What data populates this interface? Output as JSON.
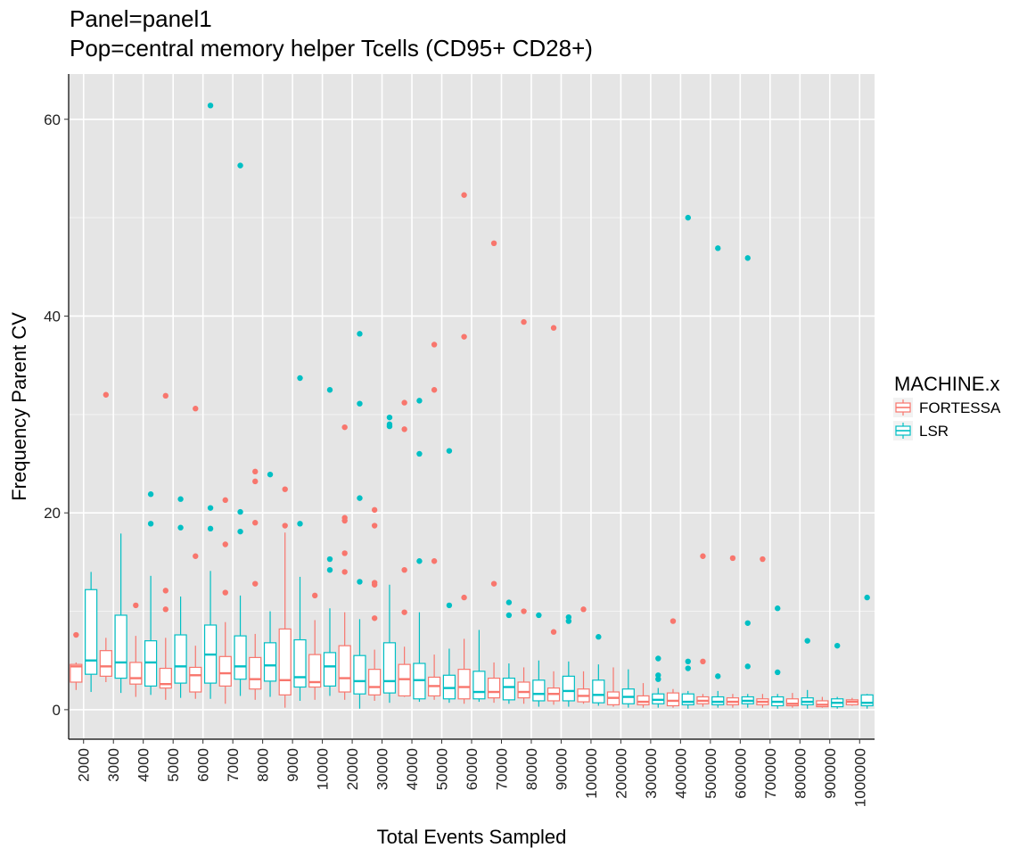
{
  "chart_data": {
    "type": "boxplot",
    "title": "Panel=panel1",
    "subtitle": "Pop=central memory helper Tcells (CD95+ CD28+)",
    "xlabel": "Total Events Sampled",
    "ylabel": "Frequency Parent CV",
    "ylim": [
      -3,
      64.6
    ],
    "yticks": [
      0,
      20,
      40,
      60
    ],
    "grid": true,
    "legend": {
      "title": "MACHINE.x",
      "position": "right"
    },
    "categories": [
      "2000",
      "3000",
      "4000",
      "5000",
      "6000",
      "7000",
      "8000",
      "9000",
      "10000",
      "20000",
      "30000",
      "40000",
      "50000",
      "60000",
      "70000",
      "80000",
      "90000",
      "100000",
      "200000",
      "300000",
      "400000",
      "500000",
      "600000",
      "700000",
      "800000",
      "900000",
      "1000000"
    ],
    "series": [
      {
        "name": "FORTESSA",
        "color": "#F8766D",
        "boxes": [
          {
            "min": 2.0,
            "q1": 2.8,
            "median": 4.4,
            "q3": 4.6,
            "max": 4.8,
            "outliers": [
              7.6
            ]
          },
          {
            "min": 2.8,
            "q1": 3.4,
            "median": 4.4,
            "q3": 6.0,
            "max": 7.3,
            "outliers": [
              32.0
            ]
          },
          {
            "min": 1.3,
            "q1": 2.6,
            "median": 3.2,
            "q3": 4.8,
            "max": 7.5,
            "outliers": [
              10.6
            ]
          },
          {
            "min": 1.0,
            "q1": 2.2,
            "median": 2.6,
            "q3": 4.2,
            "max": 7.3,
            "outliers": [
              10.2,
              12.1,
              31.9
            ]
          },
          {
            "min": 1.1,
            "q1": 1.8,
            "median": 3.5,
            "q3": 4.3,
            "max": 6.5,
            "outliers": [
              15.6,
              30.6
            ]
          },
          {
            "min": 0.6,
            "q1": 2.4,
            "median": 3.7,
            "q3": 5.4,
            "max": 8.9,
            "outliers": [
              11.9,
              16.8,
              21.3
            ]
          },
          {
            "min": 1.0,
            "q1": 2.1,
            "median": 3.1,
            "q3": 5.3,
            "max": 7.7,
            "outliers": [
              12.8,
              19.0,
              23.2,
              24.2
            ]
          },
          {
            "min": 0.2,
            "q1": 1.5,
            "median": 3.0,
            "q3": 8.2,
            "max": 18.0,
            "outliers": [
              18.7,
              22.4
            ]
          },
          {
            "min": 1.0,
            "q1": 2.3,
            "median": 2.8,
            "q3": 5.6,
            "max": 9.1,
            "outliers": [
              11.6
            ]
          },
          {
            "min": 1.0,
            "q1": 1.8,
            "median": 3.2,
            "q3": 6.5,
            "max": 9.9,
            "outliers": [
              14.0,
              15.9,
              19.2,
              19.5,
              28.7
            ]
          },
          {
            "min": 0.9,
            "q1": 1.5,
            "median": 2.3,
            "q3": 4.1,
            "max": 6.1,
            "outliers": [
              9.3,
              12.7,
              12.9,
              18.7,
              20.3
            ]
          },
          {
            "min": 1.3,
            "q1": 1.4,
            "median": 3.1,
            "q3": 4.6,
            "max": 6.4,
            "outliers": [
              9.9,
              14.2,
              28.5,
              31.2
            ]
          },
          {
            "min": 1.0,
            "q1": 1.4,
            "median": 2.4,
            "q3": 3.3,
            "max": 5.6,
            "outliers": [
              15.1,
              32.5,
              37.1
            ]
          },
          {
            "min": 0.6,
            "q1": 1.1,
            "median": 2.3,
            "q3": 4.1,
            "max": 7.2,
            "outliers": [
              11.4,
              37.9,
              52.3
            ]
          },
          {
            "min": 0.7,
            "q1": 1.2,
            "median": 1.8,
            "q3": 3.2,
            "max": 4.8,
            "outliers": [
              12.8,
              47.4
            ]
          },
          {
            "min": 0.6,
            "q1": 1.2,
            "median": 1.8,
            "q3": 2.8,
            "max": 4.3,
            "outliers": [
              10.0,
              39.4
            ]
          },
          {
            "min": 0.5,
            "q1": 0.9,
            "median": 1.6,
            "q3": 2.2,
            "max": 3.9,
            "outliers": [
              7.9,
              38.8
            ]
          },
          {
            "min": 0.6,
            "q1": 0.8,
            "median": 1.4,
            "q3": 2.1,
            "max": 3.9,
            "outliers": [
              10.2
            ]
          },
          {
            "min": 0.3,
            "q1": 0.5,
            "median": 1.2,
            "q3": 1.8,
            "max": 4.3,
            "outliers": []
          },
          {
            "min": 0.2,
            "q1": 0.5,
            "median": 0.8,
            "q3": 1.4,
            "max": 2.7,
            "outliers": []
          },
          {
            "min": 0.2,
            "q1": 0.4,
            "median": 0.9,
            "q3": 1.7,
            "max": 2.1,
            "outliers": [
              9.0
            ]
          },
          {
            "min": 0.3,
            "q1": 0.6,
            "median": 0.9,
            "q3": 1.3,
            "max": 1.6,
            "outliers": [
              4.9,
              15.6
            ]
          },
          {
            "min": 0.2,
            "q1": 0.5,
            "median": 0.8,
            "q3": 1.2,
            "max": 1.6,
            "outliers": [
              15.4
            ]
          },
          {
            "min": 0.2,
            "q1": 0.5,
            "median": 0.8,
            "q3": 1.1,
            "max": 1.6,
            "outliers": [
              15.3
            ]
          },
          {
            "min": 0.2,
            "q1": 0.4,
            "median": 0.6,
            "q3": 1.1,
            "max": 1.7,
            "outliers": []
          },
          {
            "min": 0.2,
            "q1": 0.3,
            "median": 0.5,
            "q3": 0.9,
            "max": 1.3,
            "outliers": []
          },
          {
            "min": 0.4,
            "q1": 0.5,
            "median": 0.8,
            "q3": 1.0,
            "max": 1.2,
            "outliers": []
          }
        ]
      },
      {
        "name": "LSR",
        "color": "#00BFC4",
        "boxes": [
          {
            "min": 1.8,
            "q1": 3.6,
            "median": 5.0,
            "q3": 12.2,
            "max": 14.0,
            "outliers": []
          },
          {
            "min": 1.7,
            "q1": 3.2,
            "median": 4.8,
            "q3": 9.6,
            "max": 17.9,
            "outliers": []
          },
          {
            "min": 1.5,
            "q1": 2.4,
            "median": 4.8,
            "q3": 7.0,
            "max": 13.6,
            "outliers": [
              18.9,
              21.9
            ]
          },
          {
            "min": 1.2,
            "q1": 2.7,
            "median": 4.4,
            "q3": 7.6,
            "max": 11.5,
            "outliers": [
              18.5,
              21.4
            ]
          },
          {
            "min": 1.1,
            "q1": 2.7,
            "median": 5.6,
            "q3": 8.6,
            "max": 14.1,
            "outliers": [
              18.4,
              20.5,
              61.4
            ]
          },
          {
            "min": 1.4,
            "q1": 3.1,
            "median": 4.4,
            "q3": 7.5,
            "max": 11.6,
            "outliers": [
              18.1,
              20.1,
              55.3
            ]
          },
          {
            "min": 1.3,
            "q1": 2.9,
            "median": 4.5,
            "q3": 6.8,
            "max": 10.0,
            "outliers": [
              23.9
            ]
          },
          {
            "min": 0.9,
            "q1": 2.3,
            "median": 3.3,
            "q3": 7.1,
            "max": 13.5,
            "outliers": [
              18.9,
              33.7
            ]
          },
          {
            "min": 1.4,
            "q1": 2.4,
            "median": 4.4,
            "q3": 5.8,
            "max": 10.3,
            "outliers": [
              14.2,
              15.3,
              32.5
            ]
          },
          {
            "min": 0.1,
            "q1": 1.6,
            "median": 2.9,
            "q3": 5.5,
            "max": 9.2,
            "outliers": [
              13.0,
              21.5,
              31.1,
              38.2
            ]
          },
          {
            "min": 0.7,
            "q1": 1.7,
            "median": 2.9,
            "q3": 6.8,
            "max": 12.7,
            "outliers": [
              28.8,
              29.0,
              29.7
            ]
          },
          {
            "min": 0.8,
            "q1": 1.1,
            "median": 3.0,
            "q3": 4.7,
            "max": 9.9,
            "outliers": [
              15.1,
              26.0,
              31.4
            ]
          },
          {
            "min": 0.7,
            "q1": 1.1,
            "median": 2.2,
            "q3": 3.5,
            "max": 6.2,
            "outliers": [
              10.6,
              26.3
            ]
          },
          {
            "min": 0.8,
            "q1": 1.1,
            "median": 1.8,
            "q3": 3.9,
            "max": 8.1,
            "outliers": []
          },
          {
            "min": 0.6,
            "q1": 1.0,
            "median": 2.3,
            "q3": 3.2,
            "max": 4.7,
            "outliers": [
              9.6,
              10.9
            ]
          },
          {
            "min": 0.3,
            "q1": 0.9,
            "median": 1.6,
            "q3": 3.0,
            "max": 5.0,
            "outliers": [
              9.6
            ]
          },
          {
            "min": 0.3,
            "q1": 0.9,
            "median": 1.9,
            "q3": 3.4,
            "max": 4.9,
            "outliers": [
              9.0,
              9.4
            ]
          },
          {
            "min": 0.4,
            "q1": 0.7,
            "median": 1.5,
            "q3": 3.0,
            "max": 4.6,
            "outliers": [
              7.4
            ]
          },
          {
            "min": 0.2,
            "q1": 0.6,
            "median": 1.3,
            "q3": 2.1,
            "max": 4.1,
            "outliers": []
          },
          {
            "min": 0.2,
            "q1": 0.6,
            "median": 1.0,
            "q3": 1.6,
            "max": 2.2,
            "outliers": [
              3.1,
              3.5,
              5.2
            ]
          },
          {
            "min": 0.1,
            "q1": 0.5,
            "median": 0.8,
            "q3": 1.6,
            "max": 1.9,
            "outliers": [
              4.2,
              4.9,
              50.0
            ]
          },
          {
            "min": 0.2,
            "q1": 0.5,
            "median": 0.8,
            "q3": 1.3,
            "max": 1.9,
            "outliers": [
              3.4,
              46.9
            ]
          },
          {
            "min": 0.2,
            "q1": 0.6,
            "median": 0.9,
            "q3": 1.3,
            "max": 1.6,
            "outliers": [
              4.4,
              8.8,
              45.9
            ]
          },
          {
            "min": 0.1,
            "q1": 0.4,
            "median": 0.8,
            "q3": 1.3,
            "max": 1.6,
            "outliers": [
              3.8,
              10.3
            ]
          },
          {
            "min": 0.1,
            "q1": 0.5,
            "median": 0.8,
            "q3": 1.2,
            "max": 2.0,
            "outliers": [
              7.0
            ]
          },
          {
            "min": 0.1,
            "q1": 0.3,
            "median": 0.7,
            "q3": 1.1,
            "max": 1.3,
            "outliers": [
              6.5
            ]
          },
          {
            "min": 0.1,
            "q1": 0.4,
            "median": 0.7,
            "q3": 1.5,
            "max": 1.6,
            "outliers": [
              11.4
            ]
          }
        ]
      }
    ]
  }
}
